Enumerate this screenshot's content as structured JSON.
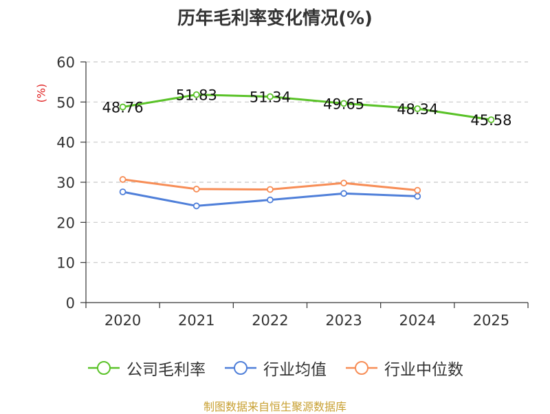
{
  "chart_data": {
    "type": "line",
    "title": "历年毛利率变化情况(%)",
    "ylabel": "(%)",
    "xlabel": "",
    "categories": [
      "2020",
      "2021",
      "2022",
      "2023",
      "2024",
      "2025"
    ],
    "ylim": [
      0,
      60
    ],
    "yticks": [
      0,
      10,
      20,
      30,
      40,
      50,
      60
    ],
    "grid": "horizontal-dashed",
    "legend": "bottom",
    "series": [
      {
        "name": "公司毛利率",
        "color": "#5ac228",
        "values": [
          48.76,
          51.83,
          51.34,
          49.65,
          48.34,
          45.58
        ],
        "labels": [
          "48.76",
          "51.83",
          "51.34",
          "49.65",
          "48.34",
          "45.58"
        ]
      },
      {
        "name": "行业均值",
        "color": "#4f7fd9",
        "values": [
          27.6,
          24.1,
          25.6,
          27.2,
          26.5,
          null
        ]
      },
      {
        "name": "行业中位数",
        "color": "#f78d56",
        "values": [
          30.7,
          28.3,
          28.2,
          29.8,
          28.0,
          null
        ]
      }
    ]
  },
  "source": "制图数据来自恒生聚源数据库"
}
